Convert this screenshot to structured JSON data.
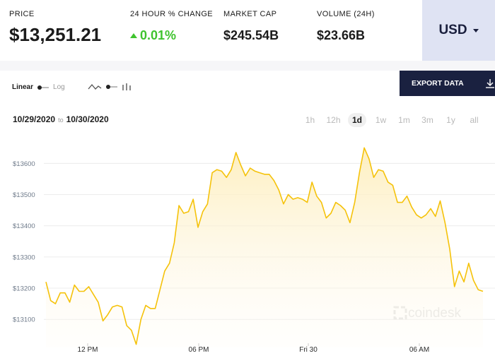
{
  "stats": {
    "price_label": "PRICE",
    "price_value": "$13,251.21",
    "change_label": "24 HOUR % CHANGE",
    "change_value": "0.01%",
    "marketcap_label": "MARKET CAP",
    "marketcap_value": "$245.54B",
    "volume_label": "VOLUME (24H)",
    "volume_value": "$23.66B",
    "currency": "USD"
  },
  "controls": {
    "scale_linear": "Linear",
    "scale_log": "Log",
    "export_label": "EXPORT DATA",
    "date_from": "10/29/2020",
    "date_to_word": "to",
    "date_to": "10/30/2020",
    "ranges": [
      "1h",
      "12h",
      "1d",
      "1w",
      "1m",
      "3m",
      "1y",
      "all"
    ],
    "active_range": "1d"
  },
  "colors": {
    "line": "#f5c20a",
    "fill_top": "#fdeebc",
    "change_up": "#3fc32e",
    "accent_dark": "#1a2140",
    "currency_bg": "#dfe3f3"
  },
  "watermark": "coindesk",
  "chart_data": {
    "type": "area",
    "x_ticks": [
      "12 PM",
      "06 PM",
      "Fri 30",
      "06 AM"
    ],
    "y_ticks": [
      "$13100",
      "$13200",
      "$13300",
      "$13400",
      "$13500",
      "$13600"
    ],
    "ylim": [
      13010,
      13680
    ],
    "grid": true,
    "series": [
      {
        "values": [
          13220,
          13160,
          13150,
          13185,
          13185,
          13155,
          13210,
          13190,
          13190,
          13205,
          13180,
          13155,
          13095,
          13115,
          13140,
          13145,
          13140,
          13080,
          13065,
          13020,
          13100,
          13145,
          13135,
          13135,
          13195,
          13255,
          13280,
          13345,
          13465,
          13440,
          13445,
          13485,
          13395,
          13445,
          13470,
          13570,
          13580,
          13575,
          13555,
          13580,
          13635,
          13595,
          13560,
          13585,
          13575,
          13570,
          13565,
          13565,
          13545,
          13515,
          13470,
          13500,
          13485,
          13490,
          13485,
          13475,
          13540,
          13495,
          13475,
          13425,
          13440,
          13475,
          13465,
          13450,
          13410,
          13475,
          13570,
          13650,
          13615,
          13555,
          13580,
          13575,
          13540,
          13530,
          13475,
          13475,
          13495,
          13460,
          13435,
          13425,
          13435,
          13455,
          13430,
          13480,
          13410,
          13325,
          13205,
          13255,
          13220,
          13280,
          13225,
          13195,
          13190
        ]
      }
    ]
  }
}
